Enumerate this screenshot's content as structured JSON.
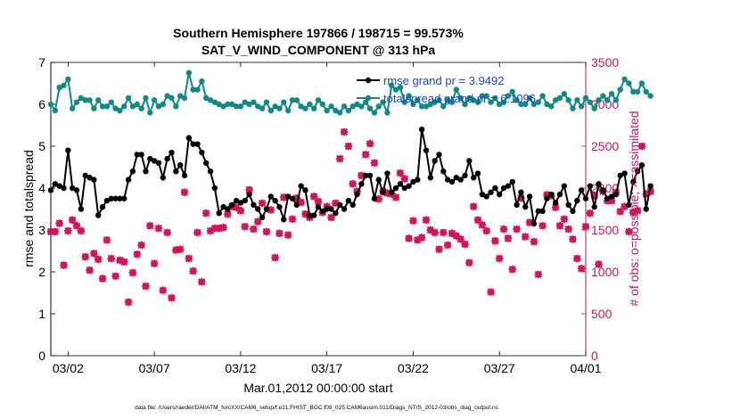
{
  "chart_data": {
    "type": "line",
    "title": "Southern Hemisphere 197866 / 198715 = 99.573%",
    "subtitle": "SAT_V_WIND_COMPONENT @ 313 hPa",
    "xlabel": "Mar.01,2012 00:00:00 start",
    "ylabel_left": "rmse and totalspread",
    "ylabel_right": "# of obs: o=possible; ×=assimilated",
    "footer": "data file: /Users/raeder/DAI/ATM_forcXX/CAM6_setup/f.e21.FHIST_BGC.f09_025.CAM6assim.011/Diags_NTrS_2012-03/obs_diag_output.nc",
    "x_ticks": [
      "03/02",
      "03/07",
      "03/12",
      "03/17",
      "03/22",
      "03/27",
      "04/01"
    ],
    "x_tick_days": [
      1,
      6,
      11,
      16,
      21,
      26,
      31
    ],
    "xlim_days": [
      0,
      31
    ],
    "ylim_left": [
      0,
      7
    ],
    "ylim_right": [
      0,
      3500
    ],
    "left_ticks": [
      "0",
      "1",
      "2",
      "3",
      "4",
      "5",
      "6",
      "7"
    ],
    "right_ticks": [
      "0",
      "500",
      "1000",
      "1500",
      "2000",
      "2500",
      "3000",
      "3500"
    ],
    "legend": {
      "position": "top-right",
      "items": [
        "rmse grand pr = 3.9492",
        "totalspread grand pr = 6.1096"
      ]
    },
    "colors": {
      "rmse": "#000000",
      "spread": "#0f8a84",
      "obs": "#d4145a",
      "legend_text": "#1a44d6",
      "right_axis": "#d4145a"
    },
    "series": [
      {
        "name": "rmse grand pr = 3.9492",
        "x_step_days": 0.25,
        "y": [
          3.95,
          4.1,
          4.05,
          4.0,
          4.9,
          4.0,
          3.95,
          3.5,
          4.3,
          4.25,
          4.2,
          3.35,
          3.55,
          3.7,
          3.75,
          3.75,
          3.75,
          3.75,
          4.2,
          4.4,
          4.8,
          4.8,
          4.4,
          4.7,
          4.65,
          4.6,
          4.25,
          4.7,
          4.85,
          4.4,
          4.55,
          4.3,
          5.2,
          5.05,
          5.05,
          4.85,
          4.6,
          4.4,
          4.0,
          3.4,
          3.55,
          3.5,
          3.6,
          3.7,
          3.65,
          3.7,
          3.85,
          3.6,
          3.5,
          3.3,
          3.5,
          3.8,
          3.7,
          3.55,
          3.25,
          3.8,
          3.75,
          3.6,
          4.05,
          3.95,
          3.35,
          3.35,
          3.55,
          3.45,
          3.5,
          3.5,
          3.4,
          3.6,
          3.5,
          3.7,
          3.6,
          3.85,
          4.1,
          4.3,
          4.3,
          3.75,
          4.2,
          3.9,
          4.35,
          3.9,
          4.0,
          4.1,
          4.0,
          4.05,
          4.15,
          4.2,
          5.4,
          4.9,
          4.25,
          4.65,
          4.8,
          4.4,
          4.2,
          4.15,
          4.25,
          4.2,
          4.3,
          4.65,
          4.25,
          4.35,
          3.85,
          3.8,
          3.9,
          4.0,
          3.85,
          4.0,
          4.05,
          4.15,
          3.6,
          3.9,
          3.55,
          3.8,
          3.15,
          3.45,
          3.45,
          3.75,
          3.85,
          3.65,
          3.85,
          4.05,
          3.6,
          3.45,
          3.7,
          3.95,
          3.75,
          4.05,
          3.55,
          4.1,
          3.95,
          3.75,
          3.8,
          3.85,
          4.3,
          4.35,
          3.6,
          4.15,
          4.4,
          4.55,
          3.5,
          4.05
        ]
      },
      {
        "name": "totalspread grand pr = 6.1096",
        "x_step_days": 0.25,
        "y": [
          6.0,
          5.85,
          6.4,
          6.45,
          6.6,
          5.9,
          6.05,
          6.15,
          6.1,
          6.1,
          5.9,
          6.1,
          5.95,
          5.95,
          6.05,
          5.9,
          5.85,
          5.95,
          6.15,
          5.95,
          6.0,
          5.9,
          6.15,
          5.8,
          6.1,
          5.95,
          6.0,
          6.2,
          6.15,
          5.95,
          6.2,
          6.15,
          6.75,
          6.35,
          6.35,
          6.55,
          6.15,
          6.1,
          6.05,
          6.0,
          5.95,
          6.0,
          6.0,
          5.95,
          5.95,
          6.05,
          6.0,
          6.05,
          5.95,
          5.9,
          6.05,
          5.85,
          5.95,
          5.9,
          6.05,
          5.85,
          6.1,
          6.1,
          5.95,
          5.9,
          6.0,
          5.9,
          6.1,
          6.0,
          5.85,
          5.95,
          5.85,
          5.8,
          5.95,
          5.85,
          5.95,
          6.0,
          5.95,
          6.05,
          5.9,
          5.8,
          5.95,
          6.05,
          5.8,
          6.45,
          6.35,
          6.4,
          6.05,
          6.2,
          6.0,
          6.1,
          5.95,
          5.95,
          6.0,
          6.05,
          6.1,
          5.95,
          6.1,
          6.05,
          6.35,
          6.15,
          6.0,
          6.15,
          6.1,
          6.05,
          6.2,
          6.2,
          6.05,
          6.15,
          6.0,
          6.05,
          6.2,
          6.3,
          6.1,
          6.0,
          6.0,
          6.15,
          6.0,
          6.05,
          6.2,
          6.0,
          5.95,
          6.1,
          6.15,
          6.25,
          6.1,
          5.9,
          6.1,
          5.95,
          6.15,
          6.05,
          5.9,
          6.1,
          6.2,
          6.1,
          6.25,
          6.1,
          6.35,
          6.6,
          6.5,
          6.3,
          6.3,
          6.5,
          6.3,
          6.2
        ]
      },
      {
        "name": "assimilated",
        "axis": "right",
        "x_step_days": 0.25,
        "y": [
          1480,
          1480,
          1580,
          1080,
          1490,
          1620,
          1550,
          1490,
          1180,
          1020,
          1220,
          1150,
          920,
          1380,
          1160,
          950,
          1140,
          1120,
          640,
          990,
          1210,
          1320,
          830,
          1550,
          1100,
          1520,
          780,
          1470,
          690,
          1260,
          1270,
          1950,
          1160,
          1010,
          1470,
          880,
          1700,
          1490,
          1520,
          1520,
          1530,
          1690,
          1780,
          1770,
          1730,
          1540,
          1980,
          1510,
          1600,
          1820,
          1480,
          1740,
          1170,
          1460,
          1890,
          1440,
          1630,
          1880,
          1830,
          1690,
          1650,
          1900,
          1840,
          1710,
          1780,
          1650,
          1820,
          2350,
          2670,
          2500,
          2050,
          1960,
          2150,
          2400,
          2530,
          2300,
          1870,
          1960,
          1940,
          1930,
          1890,
          2180,
          2110,
          1400,
          1610,
          1380,
          1410,
          1620,
          1500,
          1470,
          1270,
          1470,
          1320,
          1460,
          1430,
          1390,
          1330,
          1110,
          1780,
          1620,
          1560,
          1490,
          760,
          1370,
          1160,
          1510,
          1400,
          1030,
          1510,
          1880,
          1420,
          1590,
          1360,
          970,
          1550,
          1920,
          1910,
          1770,
          1550,
          1630,
          1510,
          1390,
          1160,
          1040,
          1540,
          1700,
          1910,
          1090,
          1960,
          1850,
          1850,
          1950,
          1720,
          1780,
          1480,
          1710,
          1730,
          2500,
          1930,
          1960
        ]
      },
      {
        "name": "possible",
        "axis": "right",
        "x_step_days": 0.25,
        "y": [
          1480,
          1480,
          1580,
          1080,
          1490,
          1620,
          1550,
          1490,
          1180,
          1020,
          1220,
          1150,
          920,
          1380,
          1160,
          950,
          1140,
          1120,
          640,
          990,
          1210,
          1320,
          830,
          1550,
          1100,
          1520,
          780,
          1470,
          690,
          1260,
          1270,
          1950,
          1160,
          1010,
          1470,
          880,
          1700,
          1490,
          1520,
          1520,
          1530,
          1690,
          1780,
          1770,
          1730,
          1540,
          1980,
          1510,
          1600,
          1820,
          1480,
          1740,
          1170,
          1460,
          1890,
          1440,
          1630,
          1880,
          1830,
          1690,
          1650,
          1900,
          1840,
          1710,
          1780,
          1650,
          1820,
          2350,
          2670,
          2500,
          2050,
          1960,
          2150,
          2400,
          2530,
          2300,
          1870,
          1960,
          1940,
          1930,
          1890,
          2180,
          2110,
          1400,
          1610,
          1380,
          1410,
          1620,
          1500,
          1470,
          1270,
          1470,
          1320,
          1460,
          1430,
          1390,
          1330,
          1110,
          1780,
          1620,
          1560,
          1490,
          760,
          1370,
          1160,
          1510,
          1400,
          1030,
          1510,
          1880,
          1420,
          1590,
          1360,
          970,
          1550,
          1920,
          1910,
          1770,
          1550,
          1630,
          1510,
          1390,
          1160,
          1040,
          1540,
          1700,
          1910,
          1090,
          1960,
          1850,
          1850,
          1950,
          1720,
          1780,
          1480,
          1710,
          1730,
          2500,
          1930,
          1960
        ]
      }
    ]
  }
}
